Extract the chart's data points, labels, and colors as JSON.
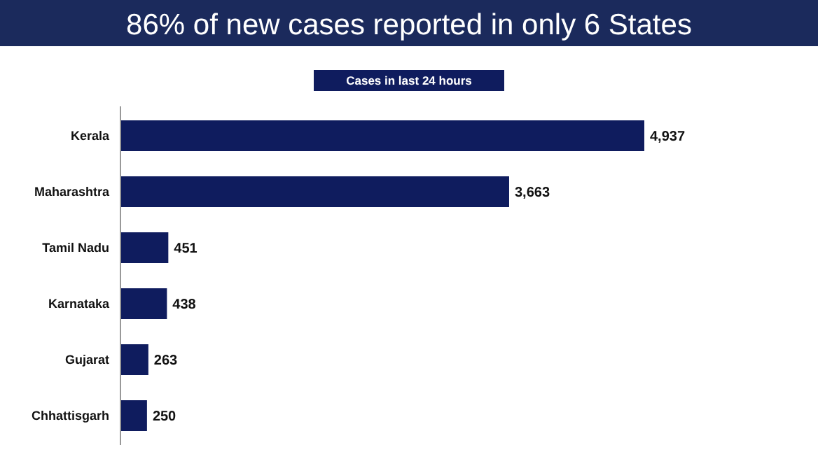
{
  "chart_data": {
    "type": "bar",
    "orientation": "horizontal",
    "title": "86% of new cases reported in only 6 States",
    "subtitle": "Cases in last 24 hours",
    "categories": [
      "Kerala",
      "Maharashtra",
      "Tamil Nadu",
      "Karnataka",
      "Gujarat",
      "Chhattisgarh"
    ],
    "values": [
      4937,
      3663,
      451,
      438,
      263,
      250
    ],
    "value_labels": [
      "4,937",
      "3,663",
      "451",
      "438",
      "263",
      "250"
    ],
    "color": "#0f1c5e"
  }
}
